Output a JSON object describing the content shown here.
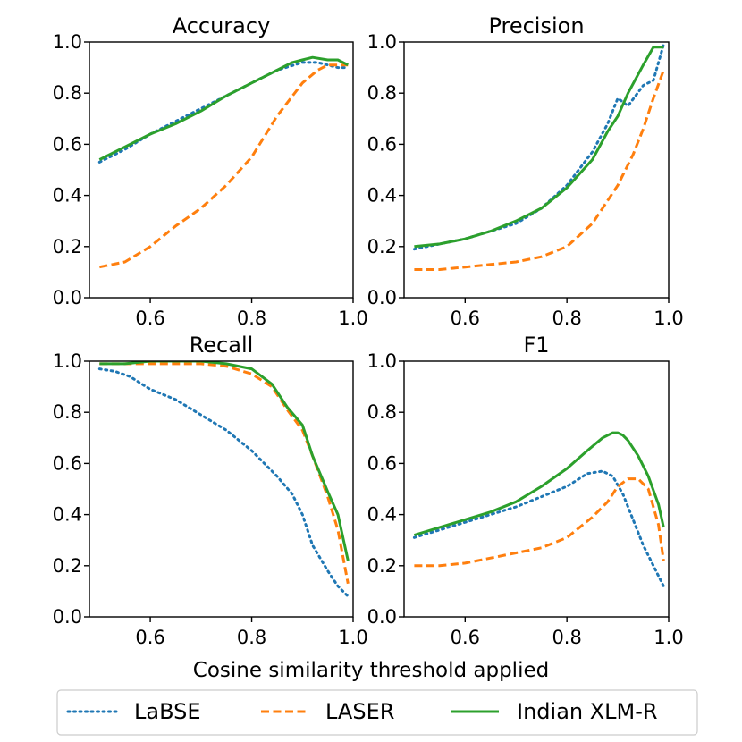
{
  "chart_data": [
    {
      "type": "line",
      "title": "Accuracy",
      "xlim": [
        0.48,
        1.0
      ],
      "ylim": [
        0.0,
        1.0
      ],
      "xticks": [
        "0.6",
        "0.8",
        "1.0"
      ],
      "yticks": [
        "0.0",
        "0.2",
        "0.4",
        "0.6",
        "0.8",
        "1.0"
      ],
      "series": [
        {
          "name": "LaBSE",
          "x": [
            0.5,
            0.55,
            0.6,
            0.65,
            0.7,
            0.75,
            0.8,
            0.85,
            0.9,
            0.93,
            0.95,
            0.97,
            0.99
          ],
          "y": [
            0.53,
            0.58,
            0.64,
            0.69,
            0.74,
            0.79,
            0.84,
            0.89,
            0.92,
            0.92,
            0.91,
            0.9,
            0.9
          ]
        },
        {
          "name": "LASER",
          "x": [
            0.5,
            0.55,
            0.6,
            0.65,
            0.7,
            0.75,
            0.8,
            0.85,
            0.9,
            0.93,
            0.95,
            0.97,
            0.99
          ],
          "y": [
            0.12,
            0.14,
            0.2,
            0.28,
            0.35,
            0.44,
            0.55,
            0.71,
            0.84,
            0.89,
            0.91,
            0.91,
            0.91
          ]
        },
        {
          "name": "Indian XLM-R",
          "x": [
            0.5,
            0.55,
            0.6,
            0.65,
            0.7,
            0.75,
            0.8,
            0.85,
            0.88,
            0.9,
            0.92,
            0.95,
            0.97,
            0.99
          ],
          "y": [
            0.54,
            0.59,
            0.64,
            0.68,
            0.73,
            0.79,
            0.84,
            0.89,
            0.92,
            0.93,
            0.94,
            0.93,
            0.93,
            0.91
          ]
        }
      ]
    },
    {
      "type": "line",
      "title": "Precision",
      "xlim": [
        0.48,
        1.0
      ],
      "ylim": [
        0.0,
        1.0
      ],
      "xticks": [
        "0.6",
        "0.8",
        "1.0"
      ],
      "yticks": [
        "0.0",
        "0.2",
        "0.4",
        "0.6",
        "0.8",
        "1.0"
      ],
      "series": [
        {
          "name": "LaBSE",
          "x": [
            0.5,
            0.55,
            0.6,
            0.65,
            0.7,
            0.75,
            0.8,
            0.85,
            0.88,
            0.9,
            0.92,
            0.95,
            0.97,
            0.99
          ],
          "y": [
            0.19,
            0.21,
            0.23,
            0.26,
            0.29,
            0.35,
            0.44,
            0.57,
            0.68,
            0.78,
            0.75,
            0.83,
            0.85,
            0.99
          ]
        },
        {
          "name": "LASER",
          "x": [
            0.5,
            0.55,
            0.6,
            0.65,
            0.7,
            0.75,
            0.8,
            0.85,
            0.9,
            0.93,
            0.95,
            0.97,
            0.99
          ],
          "y": [
            0.11,
            0.11,
            0.12,
            0.13,
            0.14,
            0.16,
            0.2,
            0.29,
            0.44,
            0.56,
            0.66,
            0.78,
            0.89
          ]
        },
        {
          "name": "Indian XLM-R",
          "x": [
            0.5,
            0.55,
            0.6,
            0.65,
            0.7,
            0.75,
            0.8,
            0.85,
            0.88,
            0.9,
            0.92,
            0.95,
            0.97,
            0.99
          ],
          "y": [
            0.2,
            0.21,
            0.23,
            0.26,
            0.3,
            0.35,
            0.43,
            0.54,
            0.65,
            0.71,
            0.8,
            0.91,
            0.98,
            0.98
          ]
        }
      ]
    },
    {
      "type": "line",
      "title": "Recall",
      "xlim": [
        0.48,
        1.0
      ],
      "ylim": [
        0.0,
        1.0
      ],
      "xticks": [
        "0.6",
        "0.8",
        "1.0"
      ],
      "yticks": [
        "0.0",
        "0.2",
        "0.4",
        "0.6",
        "0.8",
        "1.0"
      ],
      "series": [
        {
          "name": "LaBSE",
          "x": [
            0.5,
            0.53,
            0.56,
            0.6,
            0.65,
            0.7,
            0.75,
            0.8,
            0.85,
            0.88,
            0.9,
            0.92,
            0.95,
            0.97,
            0.99
          ],
          "y": [
            0.97,
            0.96,
            0.94,
            0.89,
            0.85,
            0.79,
            0.73,
            0.65,
            0.55,
            0.48,
            0.4,
            0.28,
            0.18,
            0.12,
            0.08
          ]
        },
        {
          "name": "LASER",
          "x": [
            0.5,
            0.55,
            0.6,
            0.65,
            0.7,
            0.75,
            0.8,
            0.84,
            0.87,
            0.9,
            0.92,
            0.95,
            0.97,
            0.99
          ],
          "y": [
            0.99,
            0.99,
            0.99,
            0.99,
            0.99,
            0.98,
            0.95,
            0.9,
            0.81,
            0.73,
            0.63,
            0.47,
            0.34,
            0.13
          ]
        },
        {
          "name": "Indian XLM-R",
          "x": [
            0.5,
            0.55,
            0.6,
            0.65,
            0.7,
            0.75,
            0.8,
            0.84,
            0.87,
            0.9,
            0.92,
            0.95,
            0.97,
            0.99
          ],
          "y": [
            0.99,
            0.99,
            1.0,
            1.0,
            1.0,
            0.99,
            0.97,
            0.91,
            0.82,
            0.75,
            0.63,
            0.49,
            0.4,
            0.22
          ]
        }
      ]
    },
    {
      "type": "line",
      "title": "F1",
      "xlim": [
        0.48,
        1.0
      ],
      "ylim": [
        0.0,
        1.0
      ],
      "xticks": [
        "0.6",
        "0.8",
        "1.0"
      ],
      "yticks": [
        "0.0",
        "0.2",
        "0.4",
        "0.6",
        "0.8",
        "1.0"
      ],
      "series": [
        {
          "name": "LaBSE",
          "x": [
            0.5,
            0.55,
            0.6,
            0.65,
            0.7,
            0.75,
            0.8,
            0.84,
            0.87,
            0.89,
            0.91,
            0.93,
            0.95,
            0.97,
            0.99
          ],
          "y": [
            0.31,
            0.34,
            0.37,
            0.4,
            0.43,
            0.47,
            0.51,
            0.56,
            0.57,
            0.55,
            0.48,
            0.38,
            0.28,
            0.2,
            0.12
          ]
        },
        {
          "name": "LASER",
          "x": [
            0.5,
            0.55,
            0.6,
            0.65,
            0.7,
            0.75,
            0.8,
            0.85,
            0.88,
            0.9,
            0.92,
            0.94,
            0.96,
            0.98,
            0.99
          ],
          "y": [
            0.2,
            0.2,
            0.21,
            0.23,
            0.25,
            0.27,
            0.31,
            0.39,
            0.45,
            0.51,
            0.54,
            0.54,
            0.5,
            0.36,
            0.22
          ]
        },
        {
          "name": "Indian XLM-R",
          "x": [
            0.5,
            0.55,
            0.6,
            0.65,
            0.7,
            0.75,
            0.8,
            0.84,
            0.87,
            0.89,
            0.9,
            0.91,
            0.92,
            0.94,
            0.96,
            0.98,
            0.99
          ],
          "y": [
            0.32,
            0.35,
            0.38,
            0.41,
            0.45,
            0.51,
            0.58,
            0.65,
            0.7,
            0.72,
            0.72,
            0.71,
            0.69,
            0.63,
            0.55,
            0.44,
            0.35
          ]
        }
      ]
    }
  ],
  "shared": {
    "xlabel": "Cosine similarity threshold applied",
    "legend": [
      {
        "name": "LaBSE",
        "color": "#1f77b4",
        "style": "dotted"
      },
      {
        "name": "LASER",
        "color": "#ff7f0e",
        "style": "dashed"
      },
      {
        "name": "Indian XLM-R",
        "color": "#2ca02c",
        "style": "solid"
      }
    ]
  }
}
